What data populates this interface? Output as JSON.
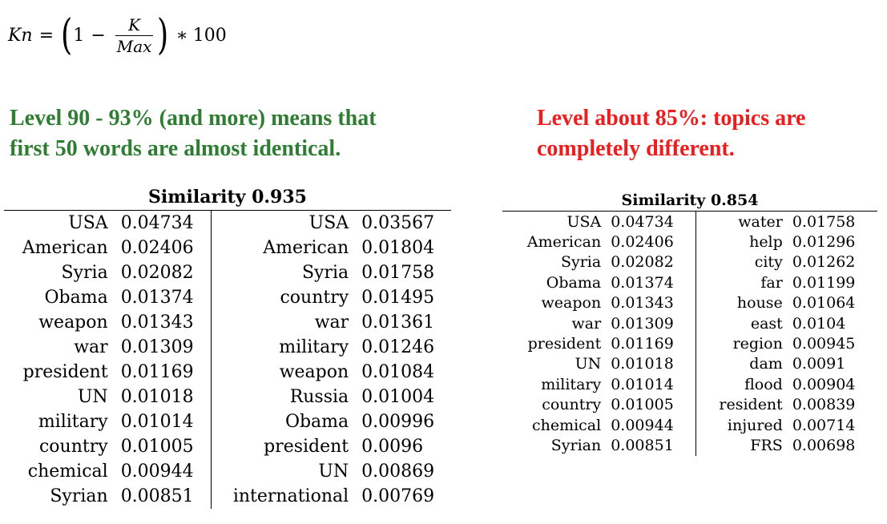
{
  "formula": {
    "lhs": "Kn",
    "eq": "=",
    "one": "1",
    "minus": "−",
    "numerator": "K",
    "denominator": "Max",
    "star": "∗",
    "hundred": "100"
  },
  "notes": {
    "green_line1": "Level 90 - 93% (and more) means that",
    "green_line2": "first 50 words are almost identical.",
    "red_line1": "Level about 85%: topics are",
    "red_line2": "completely different.",
    "green_color": "#2e7d32",
    "red_color": "#ee1c1c"
  },
  "table1": {
    "title": "Similarity 0.935",
    "rows": [
      [
        "USA",
        "0.04734",
        "USA",
        "0.03567"
      ],
      [
        "American",
        "0.02406",
        "American",
        "0.01804"
      ],
      [
        "Syria",
        "0.02082",
        "Syria",
        "0.01758"
      ],
      [
        "Obama",
        "0.01374",
        "country",
        "0.01495"
      ],
      [
        "weapon",
        "0.01343",
        "war",
        "0.01361"
      ],
      [
        "war",
        "0.01309",
        "military",
        "0.01246"
      ],
      [
        "president",
        "0.01169",
        "weapon",
        "0.01084"
      ],
      [
        "UN",
        "0.01018",
        "Russia",
        "0.01004"
      ],
      [
        "military",
        "0.01014",
        "Obama",
        "0.00996"
      ],
      [
        "country",
        "0.01005",
        "president",
        "0.0096"
      ],
      [
        "chemical",
        "0.00944",
        "UN",
        "0.00869"
      ],
      [
        "Syrian",
        "0.00851",
        "international",
        "0.00769"
      ]
    ]
  },
  "table2": {
    "title": "Similarity 0.854",
    "rows": [
      [
        "USA",
        "0.04734",
        "water",
        "0.01758"
      ],
      [
        "American",
        "0.02406",
        "help",
        "0.01296"
      ],
      [
        "Syria",
        "0.02082",
        "city",
        "0.01262"
      ],
      [
        "Obama",
        "0.01374",
        "far",
        "0.01199"
      ],
      [
        "weapon",
        "0.01343",
        "house",
        "0.01064"
      ],
      [
        "war",
        "0.01309",
        "east",
        "0.0104"
      ],
      [
        "president",
        "0.01169",
        "region",
        "0.00945"
      ],
      [
        "UN",
        "0.01018",
        "dam",
        "0.0091"
      ],
      [
        "military",
        "0.01014",
        "flood",
        "0.00904"
      ],
      [
        "country",
        "0.01005",
        "resident",
        "0.00839"
      ],
      [
        "chemical",
        "0.00944",
        "injured",
        "0.00714"
      ],
      [
        "Syrian",
        "0.00851",
        "FRS",
        "0.00698"
      ]
    ]
  }
}
